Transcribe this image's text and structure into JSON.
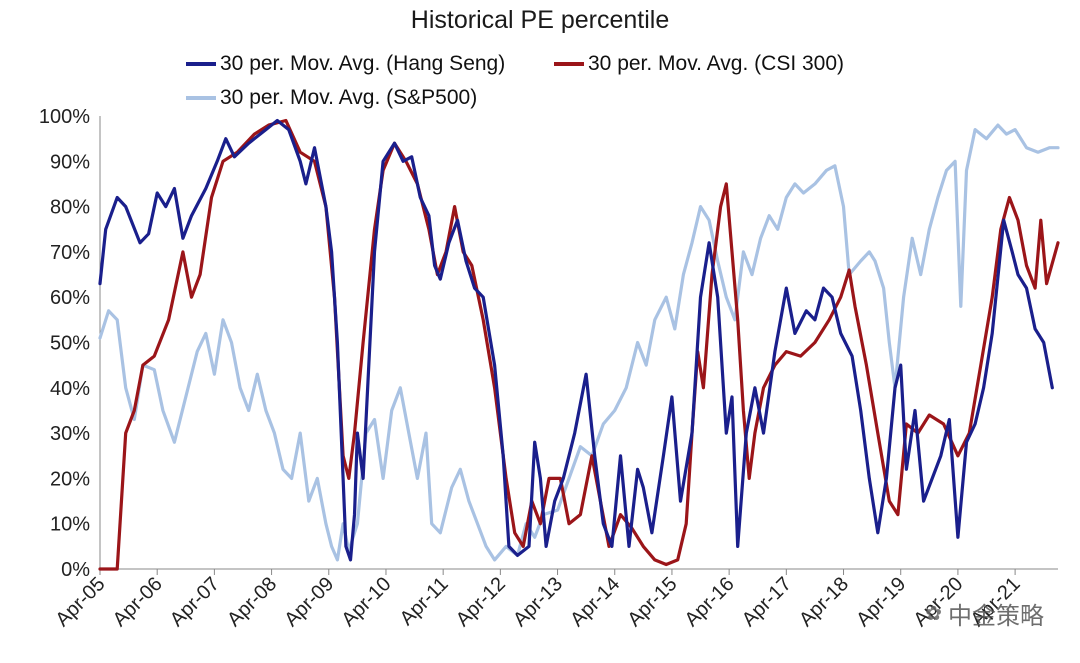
{
  "chart_data": {
    "type": "line",
    "title": "Historical PE percentile",
    "xlabel": "",
    "ylabel": "",
    "ylim": [
      0,
      100
    ],
    "yticks": [
      "0%",
      "10%",
      "20%",
      "30%",
      "40%",
      "50%",
      "60%",
      "70%",
      "80%",
      "90%",
      "100%"
    ],
    "x_tick_labels": [
      "Apr-05",
      "Apr-06",
      "Apr-07",
      "Apr-08",
      "Apr-09",
      "Apr-10",
      "Apr-11",
      "Apr-12",
      "Apr-13",
      "Apr-14",
      "Apr-15",
      "Apr-16",
      "Apr-17",
      "Apr-18",
      "Apr-19",
      "Apr-20",
      "Apr-21"
    ],
    "x_range_years": [
      0,
      16.75
    ],
    "legend_position": "top",
    "series": [
      {
        "name": "30 per. Mov. Avg. (Hang Seng)",
        "color": "#1a1f8c",
        "points": [
          [
            0,
            63
          ],
          [
            0.1,
            75
          ],
          [
            0.3,
            82
          ],
          [
            0.45,
            80
          ],
          [
            0.7,
            72
          ],
          [
            0.85,
            74
          ],
          [
            1.0,
            83
          ],
          [
            1.15,
            80
          ],
          [
            1.3,
            84
          ],
          [
            1.45,
            73
          ],
          [
            1.6,
            78
          ],
          [
            1.85,
            84
          ],
          [
            2.05,
            90
          ],
          [
            2.2,
            95
          ],
          [
            2.35,
            91
          ],
          [
            2.6,
            94
          ],
          [
            2.9,
            97
          ],
          [
            3.1,
            99
          ],
          [
            3.3,
            97
          ],
          [
            3.5,
            90
          ],
          [
            3.6,
            85
          ],
          [
            3.75,
            93
          ],
          [
            3.95,
            80
          ],
          [
            4.05,
            70
          ],
          [
            4.15,
            50
          ],
          [
            4.25,
            20
          ],
          [
            4.3,
            5
          ],
          [
            4.38,
            2
          ],
          [
            4.45,
            12
          ],
          [
            4.5,
            30
          ],
          [
            4.6,
            20
          ],
          [
            4.7,
            45
          ],
          [
            4.8,
            70
          ],
          [
            4.95,
            90
          ],
          [
            5.15,
            94
          ],
          [
            5.3,
            90
          ],
          [
            5.45,
            91
          ],
          [
            5.6,
            82
          ],
          [
            5.75,
            78
          ],
          [
            5.85,
            67
          ],
          [
            5.95,
            64
          ],
          [
            6.1,
            72
          ],
          [
            6.25,
            77
          ],
          [
            6.4,
            68
          ],
          [
            6.55,
            62
          ],
          [
            6.7,
            60
          ],
          [
            6.9,
            45
          ],
          [
            7.05,
            25
          ],
          [
            7.15,
            5
          ],
          [
            7.3,
            3
          ],
          [
            7.5,
            5
          ],
          [
            7.6,
            28
          ],
          [
            7.7,
            20
          ],
          [
            7.8,
            5
          ],
          [
            7.95,
            15
          ],
          [
            8.1,
            20
          ],
          [
            8.3,
            30
          ],
          [
            8.5,
            43
          ],
          [
            8.65,
            25
          ],
          [
            8.8,
            10
          ],
          [
            8.95,
            5
          ],
          [
            9.1,
            25
          ],
          [
            9.25,
            5
          ],
          [
            9.4,
            22
          ],
          [
            9.5,
            18
          ],
          [
            9.65,
            8
          ],
          [
            9.85,
            25
          ],
          [
            10.0,
            38
          ],
          [
            10.15,
            15
          ],
          [
            10.35,
            30
          ],
          [
            10.5,
            60
          ],
          [
            10.65,
            72
          ],
          [
            10.8,
            60
          ],
          [
            10.95,
            30
          ],
          [
            11.05,
            38
          ],
          [
            11.15,
            5
          ],
          [
            11.3,
            30
          ],
          [
            11.45,
            40
          ],
          [
            11.6,
            30
          ],
          [
            11.8,
            48
          ],
          [
            12.0,
            62
          ],
          [
            12.15,
            52
          ],
          [
            12.35,
            57
          ],
          [
            12.5,
            55
          ],
          [
            12.65,
            62
          ],
          [
            12.8,
            60
          ],
          [
            12.95,
            52
          ],
          [
            13.15,
            47
          ],
          [
            13.3,
            35
          ],
          [
            13.45,
            20
          ],
          [
            13.6,
            8
          ],
          [
            13.75,
            20
          ],
          [
            13.9,
            40
          ],
          [
            14.0,
            45
          ],
          [
            14.1,
            22
          ],
          [
            14.25,
            35
          ],
          [
            14.4,
            15
          ],
          [
            14.55,
            20
          ],
          [
            14.7,
            25
          ],
          [
            14.85,
            33
          ],
          [
            15.0,
            7
          ],
          [
            15.15,
            28
          ],
          [
            15.3,
            32
          ],
          [
            15.45,
            40
          ],
          [
            15.6,
            52
          ],
          [
            15.8,
            77
          ],
          [
            15.95,
            70
          ],
          [
            16.05,
            65
          ],
          [
            16.2,
            62
          ],
          [
            16.35,
            53
          ],
          [
            16.5,
            50
          ],
          [
            16.65,
            40
          ]
        ]
      },
      {
        "name": "30 per. Mov. Avg. (CSI 300)",
        "color": "#9b1519",
        "points": [
          [
            0,
            0
          ],
          [
            0.3,
            0
          ],
          [
            0.45,
            30
          ],
          [
            0.6,
            35
          ],
          [
            0.75,
            45
          ],
          [
            0.95,
            47
          ],
          [
            1.2,
            55
          ],
          [
            1.45,
            70
          ],
          [
            1.6,
            60
          ],
          [
            1.75,
            65
          ],
          [
            1.95,
            82
          ],
          [
            2.15,
            90
          ],
          [
            2.4,
            92
          ],
          [
            2.7,
            96
          ],
          [
            2.95,
            98
          ],
          [
            3.25,
            99
          ],
          [
            3.5,
            92
          ],
          [
            3.75,
            90
          ],
          [
            3.95,
            80
          ],
          [
            4.1,
            60
          ],
          [
            4.25,
            25
          ],
          [
            4.35,
            20
          ],
          [
            4.45,
            30
          ],
          [
            4.6,
            50
          ],
          [
            4.8,
            75
          ],
          [
            4.95,
            88
          ],
          [
            5.15,
            94
          ],
          [
            5.35,
            90
          ],
          [
            5.55,
            85
          ],
          [
            5.75,
            75
          ],
          [
            5.9,
            65
          ],
          [
            6.05,
            70
          ],
          [
            6.2,
            80
          ],
          [
            6.35,
            70
          ],
          [
            6.5,
            67
          ],
          [
            6.7,
            55
          ],
          [
            6.9,
            40
          ],
          [
            7.1,
            20
          ],
          [
            7.25,
            8
          ],
          [
            7.4,
            5
          ],
          [
            7.55,
            15
          ],
          [
            7.7,
            10
          ],
          [
            7.85,
            20
          ],
          [
            8.05,
            20
          ],
          [
            8.2,
            10
          ],
          [
            8.4,
            12
          ],
          [
            8.6,
            25
          ],
          [
            8.75,
            15
          ],
          [
            8.9,
            5
          ],
          [
            9.1,
            12
          ],
          [
            9.3,
            9
          ],
          [
            9.5,
            5
          ],
          [
            9.7,
            2
          ],
          [
            9.9,
            1
          ],
          [
            10.1,
            2
          ],
          [
            10.25,
            10
          ],
          [
            10.35,
            30
          ],
          [
            10.45,
            48
          ],
          [
            10.55,
            40
          ],
          [
            10.7,
            65
          ],
          [
            10.85,
            80
          ],
          [
            10.95,
            85
          ],
          [
            11.05,
            70
          ],
          [
            11.15,
            55
          ],
          [
            11.25,
            35
          ],
          [
            11.35,
            20
          ],
          [
            11.45,
            30
          ],
          [
            11.6,
            40
          ],
          [
            11.8,
            45
          ],
          [
            12.0,
            48
          ],
          [
            12.25,
            47
          ],
          [
            12.5,
            50
          ],
          [
            12.75,
            55
          ],
          [
            12.95,
            60
          ],
          [
            13.1,
            66
          ],
          [
            13.2,
            58
          ],
          [
            13.4,
            45
          ],
          [
            13.6,
            30
          ],
          [
            13.8,
            15
          ],
          [
            13.95,
            12
          ],
          [
            14.1,
            32
          ],
          [
            14.3,
            30
          ],
          [
            14.5,
            34
          ],
          [
            14.75,
            32
          ],
          [
            15.0,
            25
          ],
          [
            15.2,
            30
          ],
          [
            15.4,
            45
          ],
          [
            15.6,
            60
          ],
          [
            15.75,
            75
          ],
          [
            15.9,
            82
          ],
          [
            16.05,
            77
          ],
          [
            16.2,
            67
          ],
          [
            16.35,
            62
          ],
          [
            16.45,
            77
          ],
          [
            16.55,
            63
          ],
          [
            16.75,
            72
          ]
        ]
      },
      {
        "name": "30 per. Mov. Avg. (S&P500)",
        "color": "#a9c2e3",
        "points": [
          [
            0,
            51
          ],
          [
            0.15,
            57
          ],
          [
            0.3,
            55
          ],
          [
            0.45,
            40
          ],
          [
            0.6,
            33
          ],
          [
            0.75,
            45
          ],
          [
            0.95,
            44
          ],
          [
            1.1,
            35
          ],
          [
            1.3,
            28
          ],
          [
            1.5,
            38
          ],
          [
            1.7,
            48
          ],
          [
            1.85,
            52
          ],
          [
            2.0,
            43
          ],
          [
            2.15,
            55
          ],
          [
            2.3,
            50
          ],
          [
            2.45,
            40
          ],
          [
            2.6,
            35
          ],
          [
            2.75,
            43
          ],
          [
            2.9,
            35
          ],
          [
            3.05,
            30
          ],
          [
            3.2,
            22
          ],
          [
            3.35,
            20
          ],
          [
            3.5,
            30
          ],
          [
            3.65,
            15
          ],
          [
            3.8,
            20
          ],
          [
            3.95,
            10
          ],
          [
            4.05,
            5
          ],
          [
            4.15,
            2
          ],
          [
            4.25,
            10
          ],
          [
            4.35,
            4
          ],
          [
            4.5,
            10
          ],
          [
            4.65,
            30
          ],
          [
            4.8,
            33
          ],
          [
            4.95,
            20
          ],
          [
            5.1,
            35
          ],
          [
            5.25,
            40
          ],
          [
            5.4,
            30
          ],
          [
            5.55,
            20
          ],
          [
            5.7,
            30
          ],
          [
            5.8,
            10
          ],
          [
            5.95,
            8
          ],
          [
            6.15,
            18
          ],
          [
            6.3,
            22
          ],
          [
            6.45,
            15
          ],
          [
            6.6,
            10
          ],
          [
            6.75,
            5
          ],
          [
            6.9,
            2
          ],
          [
            7.1,
            5
          ],
          [
            7.3,
            3
          ],
          [
            7.45,
            10
          ],
          [
            7.6,
            7
          ],
          [
            7.75,
            12
          ],
          [
            8.0,
            13
          ],
          [
            8.2,
            20
          ],
          [
            8.4,
            27
          ],
          [
            8.6,
            25
          ],
          [
            8.8,
            32
          ],
          [
            9.0,
            35
          ],
          [
            9.2,
            40
          ],
          [
            9.4,
            50
          ],
          [
            9.55,
            45
          ],
          [
            9.7,
            55
          ],
          [
            9.9,
            60
          ],
          [
            10.05,
            53
          ],
          [
            10.2,
            65
          ],
          [
            10.35,
            72
          ],
          [
            10.5,
            80
          ],
          [
            10.65,
            77
          ],
          [
            10.8,
            68
          ],
          [
            10.95,
            60
          ],
          [
            11.1,
            55
          ],
          [
            11.25,
            70
          ],
          [
            11.4,
            65
          ],
          [
            11.55,
            73
          ],
          [
            11.7,
            78
          ],
          [
            11.85,
            75
          ],
          [
            12.0,
            82
          ],
          [
            12.15,
            85
          ],
          [
            12.3,
            83
          ],
          [
            12.5,
            85
          ],
          [
            12.7,
            88
          ],
          [
            12.85,
            89
          ],
          [
            13.0,
            80
          ],
          [
            13.1,
            65
          ],
          [
            13.3,
            68
          ],
          [
            13.45,
            70
          ],
          [
            13.55,
            68
          ],
          [
            13.7,
            62
          ],
          [
            13.8,
            50
          ],
          [
            13.9,
            40
          ],
          [
            14.05,
            60
          ],
          [
            14.2,
            73
          ],
          [
            14.35,
            65
          ],
          [
            14.5,
            75
          ],
          [
            14.65,
            82
          ],
          [
            14.8,
            88
          ],
          [
            14.95,
            90
          ],
          [
            15.05,
            58
          ],
          [
            15.15,
            88
          ],
          [
            15.3,
            97
          ],
          [
            15.5,
            95
          ],
          [
            15.7,
            98
          ],
          [
            15.85,
            96
          ],
          [
            16.0,
            97
          ],
          [
            16.2,
            93
          ],
          [
            16.4,
            92
          ],
          [
            16.6,
            93
          ],
          [
            16.75,
            93
          ]
        ]
      }
    ]
  },
  "watermark": {
    "icon": "wechat-icon",
    "text": "中金策略"
  }
}
